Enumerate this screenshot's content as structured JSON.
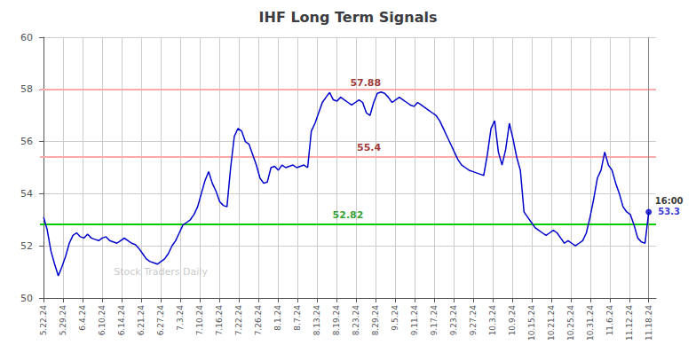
{
  "chart_data": {
    "type": "line",
    "title": "IHF Long Term Signals",
    "background_color": "#ffffff",
    "grid": true,
    "grid_color": "#cccccc",
    "color": "#0000cc",
    "xlim": [
      -1,
      167
    ],
    "xticks": [
      {
        "value": 0,
        "label": "5.22.24"
      },
      {
        "value": 5.3225806452,
        "label": "5.29.24"
      },
      {
        "value": 10.6451612903,
        "label": "6.4.24"
      },
      {
        "value": 15.9677419355,
        "label": "6.10.24"
      },
      {
        "value": 21.2903225806,
        "label": "6.14.24"
      },
      {
        "value": 26.6129032258,
        "label": "6.21.24"
      },
      {
        "value": 31.935483871,
        "label": "6.27.24"
      },
      {
        "value": 37.2580645161,
        "label": "7.3.24"
      },
      {
        "value": 42.5806451613,
        "label": "7.10.24"
      },
      {
        "value": 47.9032258065,
        "label": "7.16.24"
      },
      {
        "value": 53.2258064516,
        "label": "7.22.24"
      },
      {
        "value": 58.5483870968,
        "label": "7.26.24"
      },
      {
        "value": 63.8709677419,
        "label": "8.1.24"
      },
      {
        "value": 69.1935483871,
        "label": "8.7.24"
      },
      {
        "value": 74.5161290323,
        "label": "8.13.24"
      },
      {
        "value": 79.8387096774,
        "label": "8.19.24"
      },
      {
        "value": 85.1612903226,
        "label": "8.23.24"
      },
      {
        "value": 90.4838709677,
        "label": "8.29.24"
      },
      {
        "value": 95.8064516129,
        "label": "9.5.24"
      },
      {
        "value": 101.1290322581,
        "label": "9.11.24"
      },
      {
        "value": 106.4516129032,
        "label": "9.17.24"
      },
      {
        "value": 111.7741935484,
        "label": "9.23.24"
      },
      {
        "value": 117.0967741935,
        "label": "9.27.24"
      },
      {
        "value": 122.4193548387,
        "label": "10.3.24"
      },
      {
        "value": 127.7419354839,
        "label": "10.9.24"
      },
      {
        "value": 133.064516129,
        "label": "10.15.24"
      },
      {
        "value": 138.3870967742,
        "label": "10.21.24"
      },
      {
        "value": 143.7096774194,
        "label": "10.25.24"
      },
      {
        "value": 149.0322580645,
        "label": "10.31.24"
      },
      {
        "value": 154.3548387097,
        "label": "11.6.24"
      },
      {
        "value": 159.6774193548,
        "label": "11.12.24"
      },
      {
        "value": 165,
        "label": "11.18.24"
      }
    ],
    "ylim": [
      50,
      60
    ],
    "yticks": [
      50,
      52,
      54,
      56,
      58,
      60
    ],
    "values": [
      53.1,
      52.6,
      51.8,
      51.3,
      50.85,
      51.2,
      51.6,
      52.1,
      52.4,
      52.5,
      52.35,
      52.3,
      52.45,
      52.3,
      52.25,
      52.2,
      52.3,
      52.35,
      52.2,
      52.15,
      52.1,
      52.2,
      52.3,
      52.2,
      52.1,
      52.05,
      51.9,
      51.7,
      51.5,
      51.4,
      51.35,
      51.3,
      51.4,
      51.5,
      51.7,
      52.0,
      52.2,
      52.5,
      52.8,
      52.9,
      53.0,
      53.2,
      53.5,
      54.0,
      54.5,
      54.85,
      54.4,
      54.1,
      53.7,
      53.55,
      53.5,
      55.0,
      56.2,
      56.5,
      56.4,
      56.0,
      55.9,
      55.5,
      55.1,
      54.6,
      54.4,
      54.45,
      55.0,
      55.05,
      54.9,
      55.1,
      55.0,
      55.05,
      55.1,
      55.0,
      55.05,
      55.1,
      55.0,
      56.4,
      56.7,
      57.1,
      57.5,
      57.7,
      57.88,
      57.6,
      57.55,
      57.7,
      57.6,
      57.5,
      57.4,
      57.5,
      57.6,
      57.5,
      57.1,
      57.0,
      57.5,
      57.85,
      57.9,
      57.85,
      57.7,
      57.5,
      57.6,
      57.7,
      57.6,
      57.5,
      57.4,
      57.35,
      57.5,
      57.4,
      57.3,
      57.2,
      57.1,
      57.0,
      56.8,
      56.5,
      56.2,
      55.9,
      55.6,
      55.3,
      55.1,
      55.0,
      54.9,
      54.85,
      54.8,
      54.75,
      54.7,
      55.5,
      56.5,
      56.8,
      55.6,
      55.1,
      55.7,
      56.7,
      56.1,
      55.4,
      54.9,
      53.3,
      53.1,
      52.9,
      52.7,
      52.6,
      52.5,
      52.4,
      52.5,
      52.6,
      52.5,
      52.3,
      52.1,
      52.2,
      52.1,
      52.0,
      52.1,
      52.2,
      52.5,
      53.1,
      53.8,
      54.6,
      54.9,
      55.6,
      55.1,
      54.9,
      54.4,
      54.0,
      53.5,
      53.3,
      53.2,
      52.8,
      52.3,
      52.15,
      52.1,
      53.3
    ],
    "reference_lines": [
      {
        "axis": "y",
        "value": 58.0,
        "color": "#ffaaaa"
      },
      {
        "axis": "y",
        "value": 55.4,
        "color": "#ffaaaa"
      },
      {
        "axis": "y",
        "value": 52.82,
        "color": "#00cc00"
      },
      {
        "axis": "x",
        "value": 165,
        "color": "#888888"
      }
    ],
    "annotations": [
      {
        "text": "57.88",
        "x": 92,
        "y": 57.88,
        "color": "#880000"
      },
      {
        "text": "55.4",
        "x": 92,
        "y": 55.4,
        "color": "#880000"
      },
      {
        "text": "52.82",
        "x": 83,
        "y": 52.82,
        "color": "#008800"
      },
      {
        "text": "16:00",
        "x": 165,
        "y": 53.3,
        "color": "#000000"
      },
      {
        "text": "53.3",
        "x": 165,
        "y": 53.3,
        "color": "#0000cc",
        "marker": "circle"
      }
    ],
    "watermark": "Stock Traders Daily"
  }
}
